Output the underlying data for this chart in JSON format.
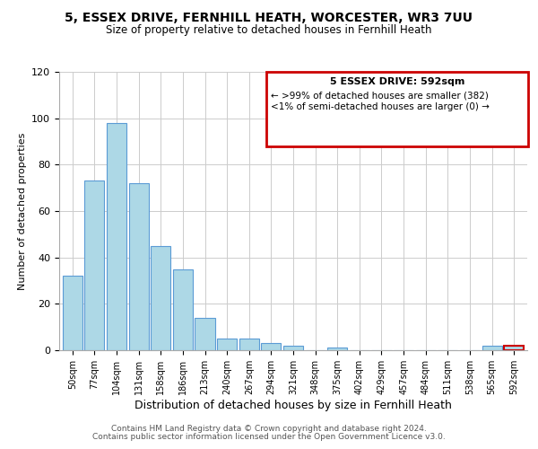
{
  "title": "5, ESSEX DRIVE, FERNHILL HEATH, WORCESTER, WR3 7UU",
  "subtitle": "Size of property relative to detached houses in Fernhill Heath",
  "xlabel": "Distribution of detached houses by size in Fernhill Heath",
  "ylabel": "Number of detached properties",
  "bar_labels": [
    "50sqm",
    "77sqm",
    "104sqm",
    "131sqm",
    "158sqm",
    "186sqm",
    "213sqm",
    "240sqm",
    "267sqm",
    "294sqm",
    "321sqm",
    "348sqm",
    "375sqm",
    "402sqm",
    "429sqm",
    "457sqm",
    "484sqm",
    "511sqm",
    "538sqm",
    "565sqm",
    "592sqm"
  ],
  "bar_values": [
    32,
    73,
    98,
    72,
    45,
    35,
    14,
    5,
    5,
    3,
    2,
    0,
    1,
    0,
    0,
    0,
    0,
    0,
    0,
    2,
    2
  ],
  "bar_color": "#add8e6",
  "bar_edge_color": "#5b9bd5",
  "highlight_index": 20,
  "highlight_bar_edge_color": "#cc0000",
  "box_text_line1": "5 ESSEX DRIVE: 592sqm",
  "box_text_line2": "← >99% of detached houses are smaller (382)",
  "box_text_line3": "<1% of semi-detached houses are larger (0) →",
  "box_edge_color": "#cc0000",
  "ylim": [
    0,
    120
  ],
  "yticks": [
    0,
    20,
    40,
    60,
    80,
    100,
    120
  ],
  "footer_line1": "Contains HM Land Registry data © Crown copyright and database right 2024.",
  "footer_line2": "Contains public sector information licensed under the Open Government Licence v3.0.",
  "background_color": "#ffffff",
  "grid_color": "#cccccc"
}
